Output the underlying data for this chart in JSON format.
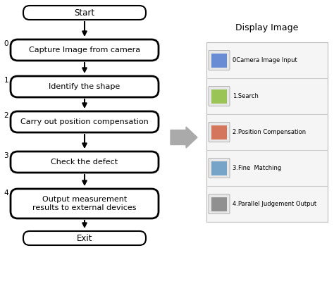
{
  "title": "Display Image",
  "bg_color": "#ffffff",
  "flowchart": {
    "start_label": "Start",
    "exit_label": "Exit",
    "steps": [
      {
        "label": "0",
        "text": "Capture Image from camera"
      },
      {
        "label": "1",
        "text": "Identify the shape"
      },
      {
        "label": "2",
        "text": "Carry out position compensation"
      },
      {
        "label": "3",
        "text": "Check the defect"
      },
      {
        "label": "4",
        "text": "Output measurement\nresults to external devices"
      }
    ]
  },
  "display_items": [
    "0Camera Image Input",
    "1.Search",
    "2.Position Compensation",
    "3.Fine  Matching",
    "4.Parallel Judgement Output"
  ],
  "box_color": "#ffffff",
  "box_edge_color": "#000000",
  "text_color": "#000000",
  "arrow_color": "#000000",
  "big_arrow_color": "#aaaaaa",
  "panel_bg": "#f5f5f5",
  "panel_border": "#bbbbbb",
  "sep_color": "#cccccc",
  "icon_bg": "#e8e8e8",
  "icon_border": "#999999"
}
